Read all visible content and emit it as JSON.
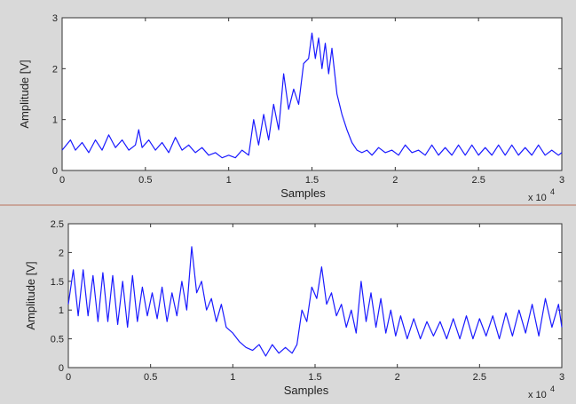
{
  "chart_data": [
    {
      "type": "line",
      "xlabel": "Samples",
      "ylabel": "Amplitude [V]",
      "xlim": [
        0,
        30000
      ],
      "ylim": [
        0,
        3
      ],
      "x_ticks": [
        0,
        5000,
        10000,
        15000,
        20000,
        25000,
        30000
      ],
      "x_tick_labels": [
        "0",
        "0.5",
        "1",
        "1.5",
        "2",
        "2.5",
        "3"
      ],
      "x_multiplier_label": "x 10",
      "x_multiplier_exponent": "4",
      "y_ticks": [
        0,
        1,
        2,
        3
      ],
      "y_tick_labels": [
        "0",
        "1",
        "2",
        "3"
      ],
      "grid": false,
      "line_color": "#1a1aff",
      "series": [
        {
          "x": [
            0,
            500,
            800,
            1200,
            1600,
            2000,
            2400,
            2800,
            3200,
            3600,
            4000,
            4400,
            4600,
            4800,
            5200,
            5600,
            6000,
            6400,
            6800,
            7200,
            7600,
            8000,
            8400,
            8800,
            9200,
            9600,
            10000,
            10400,
            10800,
            11200,
            11500,
            11800,
            12100,
            12400,
            12700,
            13000,
            13300,
            13600,
            13900,
            14200,
            14500,
            14800,
            15000,
            15200,
            15400,
            15600,
            15800,
            16000,
            16200,
            16500,
            16800,
            17100,
            17400,
            17700,
            18000,
            18300,
            18600,
            19000,
            19400,
            19800,
            20200,
            20600,
            21000,
            21400,
            21800,
            22200,
            22600,
            23000,
            23400,
            23800,
            24200,
            24600,
            25000,
            25400,
            25800,
            26200,
            26600,
            27000,
            27400,
            27800,
            28200,
            28600,
            29000,
            29400,
            29800,
            30000
          ],
          "y": [
            0.4,
            0.6,
            0.4,
            0.55,
            0.35,
            0.6,
            0.4,
            0.7,
            0.45,
            0.6,
            0.4,
            0.5,
            0.8,
            0.45,
            0.6,
            0.4,
            0.55,
            0.35,
            0.65,
            0.4,
            0.5,
            0.35,
            0.45,
            0.3,
            0.35,
            0.25,
            0.3,
            0.25,
            0.4,
            0.3,
            1.0,
            0.5,
            1.1,
            0.6,
            1.3,
            0.8,
            1.9,
            1.2,
            1.6,
            1.3,
            2.1,
            2.2,
            2.7,
            2.2,
            2.6,
            2.0,
            2.5,
            1.9,
            2.4,
            1.5,
            1.1,
            0.8,
            0.55,
            0.4,
            0.35,
            0.4,
            0.3,
            0.45,
            0.35,
            0.4,
            0.3,
            0.5,
            0.35,
            0.4,
            0.3,
            0.5,
            0.3,
            0.45,
            0.3,
            0.5,
            0.3,
            0.5,
            0.3,
            0.45,
            0.3,
            0.5,
            0.3,
            0.5,
            0.3,
            0.45,
            0.3,
            0.5,
            0.3,
            0.4,
            0.3,
            0.35
          ]
        }
      ]
    },
    {
      "type": "line",
      "xlabel": "Samples",
      "ylabel": "Amplitude [V]",
      "xlim": [
        0,
        30000
      ],
      "ylim": [
        0,
        2.5
      ],
      "x_ticks": [
        0,
        5000,
        10000,
        15000,
        20000,
        25000,
        30000
      ],
      "x_tick_labels": [
        "0",
        "0.5",
        "1",
        "1.5",
        "2",
        "2.5",
        "3"
      ],
      "x_multiplier_label": "x 10",
      "x_multiplier_exponent": "4",
      "y_ticks": [
        0,
        0.5,
        1,
        1.5,
        2,
        2.5
      ],
      "y_tick_labels": [
        "0",
        "0.5",
        "1",
        "1.5",
        "2",
        "2.5"
      ],
      "grid": false,
      "line_color": "#1a1aff",
      "series": [
        {
          "x": [
            0,
            300,
            600,
            900,
            1200,
            1500,
            1800,
            2100,
            2400,
            2700,
            3000,
            3300,
            3600,
            3900,
            4200,
            4500,
            4800,
            5100,
            5400,
            5700,
            6000,
            6300,
            6600,
            6900,
            7200,
            7500,
            7800,
            8100,
            8400,
            8700,
            9000,
            9300,
            9600,
            10000,
            10400,
            10800,
            11200,
            11600,
            12000,
            12400,
            12800,
            13200,
            13600,
            13900,
            14200,
            14500,
            14800,
            15100,
            15400,
            15700,
            16000,
            16300,
            16600,
            16900,
            17200,
            17500,
            17800,
            18100,
            18400,
            18700,
            19000,
            19300,
            19600,
            19900,
            20200,
            20600,
            21000,
            21400,
            21800,
            22200,
            22600,
            23000,
            23400,
            23800,
            24200,
            24600,
            25000,
            25400,
            25800,
            26200,
            26600,
            27000,
            27400,
            27800,
            28200,
            28600,
            29000,
            29400,
            29800,
            30000
          ],
          "y": [
            1.1,
            1.7,
            0.9,
            1.7,
            0.9,
            1.6,
            0.8,
            1.65,
            0.8,
            1.6,
            0.75,
            1.5,
            0.7,
            1.6,
            0.8,
            1.4,
            0.9,
            1.3,
            0.85,
            1.4,
            0.8,
            1.3,
            0.9,
            1.5,
            1.0,
            2.1,
            1.3,
            1.5,
            1.0,
            1.2,
            0.8,
            1.1,
            0.7,
            0.6,
            0.45,
            0.35,
            0.3,
            0.4,
            0.2,
            0.4,
            0.25,
            0.35,
            0.25,
            0.4,
            1.0,
            0.8,
            1.4,
            1.2,
            1.75,
            1.1,
            1.3,
            0.9,
            1.1,
            0.7,
            1.0,
            0.6,
            1.5,
            0.8,
            1.3,
            0.7,
            1.2,
            0.6,
            1.0,
            0.55,
            0.9,
            0.5,
            0.85,
            0.5,
            0.8,
            0.55,
            0.8,
            0.5,
            0.85,
            0.5,
            0.9,
            0.5,
            0.85,
            0.55,
            0.9,
            0.5,
            0.95,
            0.55,
            1.0,
            0.6,
            1.1,
            0.55,
            1.2,
            0.7,
            1.1,
            0.7
          ]
        }
      ]
    }
  ]
}
